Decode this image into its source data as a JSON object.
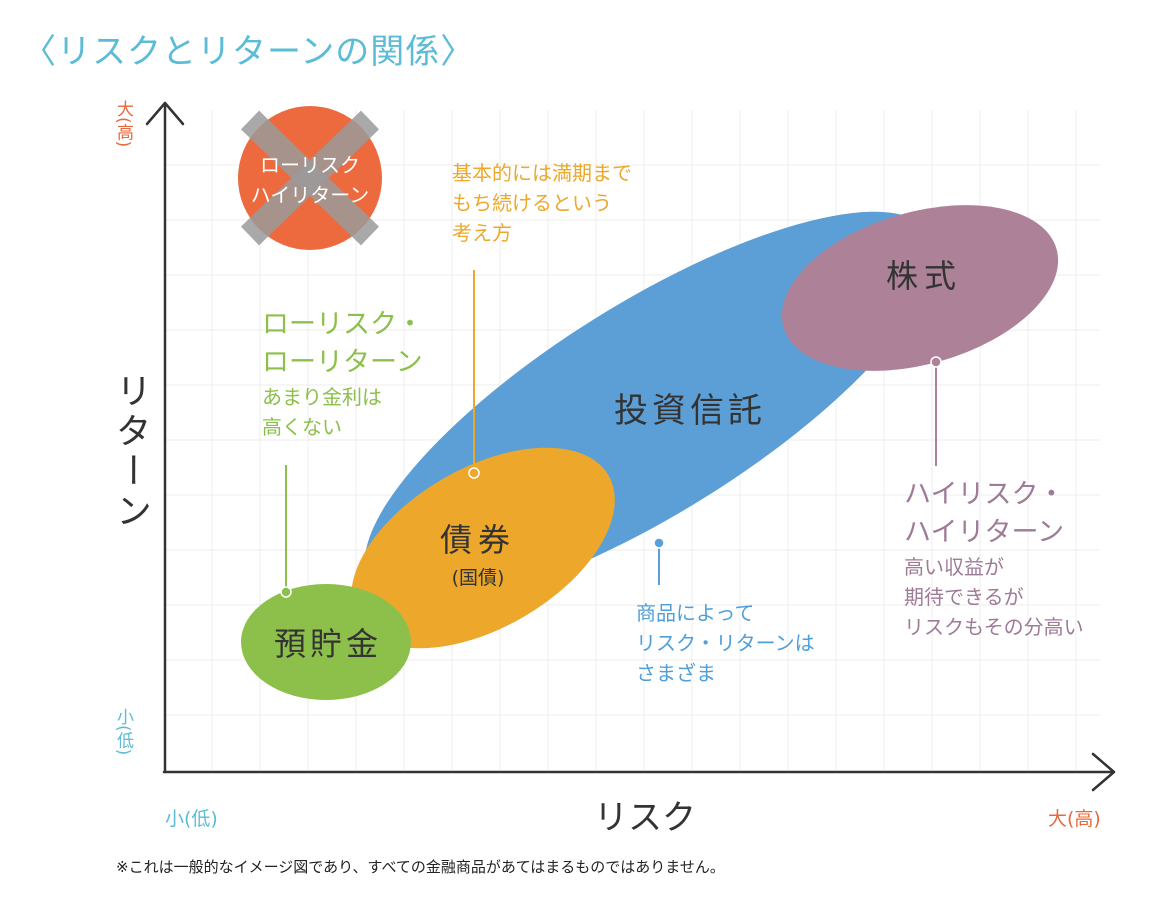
{
  "title": "〈リスクとリターンの関係〉",
  "axes": {
    "x_label": "リスク",
    "y_label": "リターン",
    "x_low": "小(低)",
    "x_high": "大(高)",
    "y_low": "小(低)",
    "y_high": "大(高)"
  },
  "crossed_out": {
    "line1": "ローリスク",
    "line2": "ハイリターン"
  },
  "products": {
    "deposit": "預貯金",
    "bond": "債券",
    "bond_sub": "(国債)",
    "trust": "投資信託",
    "stock": "株式"
  },
  "annotations": {
    "low_risk": {
      "head1": "ローリスク・",
      "head2": "ローリターン",
      "body1": "あまり金利は",
      "body2": "高くない"
    },
    "bond_note": {
      "line1": "基本的には満期まで",
      "line2": "もち続けるという",
      "line3": "考え方"
    },
    "trust_note": {
      "line1": "商品によって",
      "line2": "リスク・リターンは",
      "line3": "さまざま"
    },
    "high_risk": {
      "head1": "ハイリスク・",
      "head2": "ハイリターン",
      "body1": "高い収益が",
      "body2": "期待できるが",
      "body3": "リスクもその分高い"
    }
  },
  "footnote": "※これは一般的なイメージ図であり、すべての金融商品があてはまるものではありません。",
  "colors": {
    "deposit": "#8cc04b",
    "bond": "#eda82c",
    "trust": "#5c9fd6",
    "stock": "#ad8299",
    "crossed_circle": "#ec6a3e",
    "cross": "#9a9a9a",
    "title": "#5bbcd6"
  }
}
